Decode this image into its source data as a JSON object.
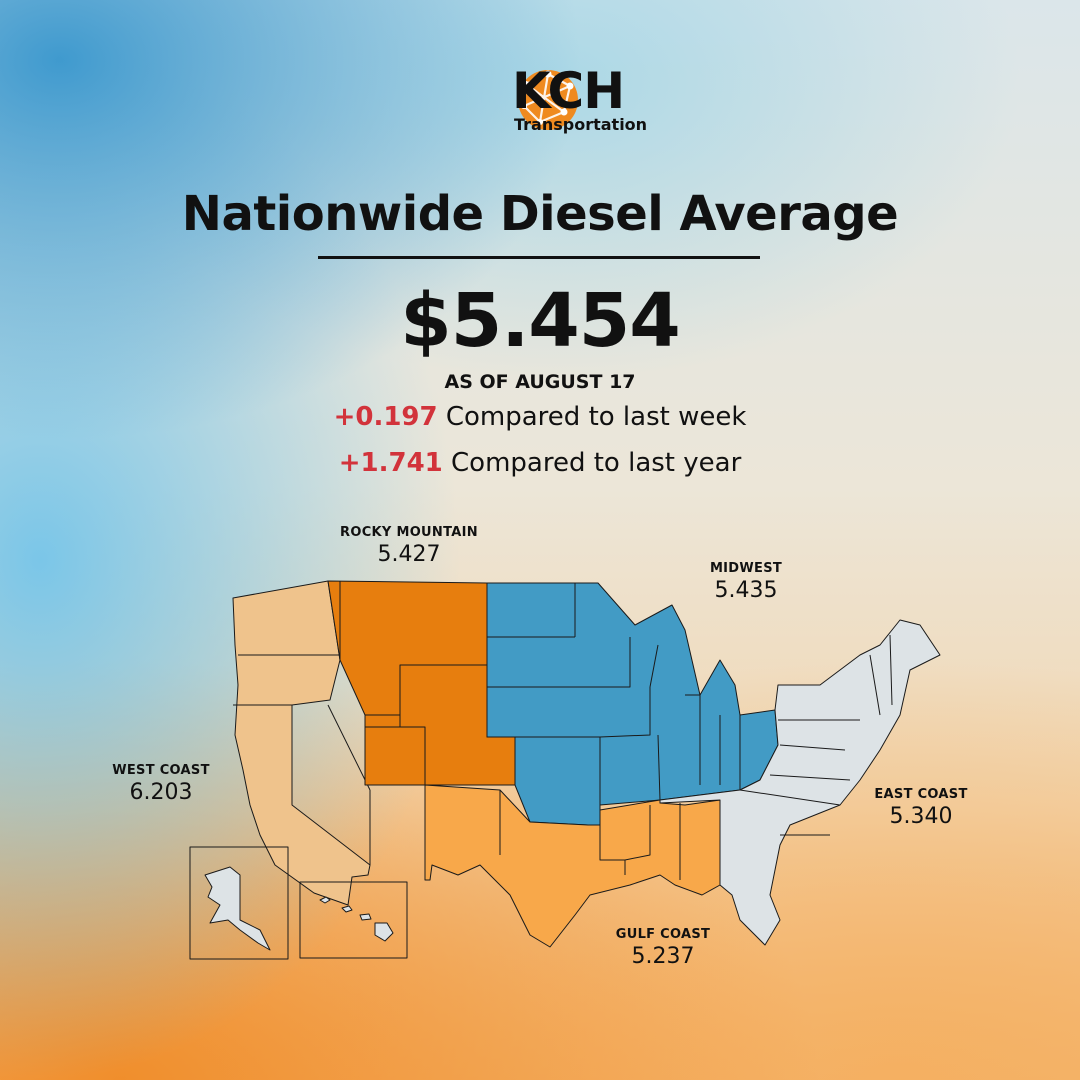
{
  "brand": {
    "name": "KCH",
    "tagline": "Transportation",
    "logo_icon": "globe-network-icon",
    "logo_color": "#ef8a1f"
  },
  "headline": {
    "title": "Nationwide Diesel Average",
    "price": "$5.454",
    "as_of": "AS OF AUGUST 17"
  },
  "changes": [
    {
      "delta": "+0.197",
      "text": "Compared to last week"
    },
    {
      "delta": "+1.741",
      "text": "Compared to last year"
    }
  ],
  "colors": {
    "delta": "#d2333b",
    "west_coast": "#efc38c",
    "rocky_mountain": "#e77e0e",
    "midwest": "#429bc5",
    "gulf_coast": "#f8a84a",
    "east_coast": "#dde3e6"
  },
  "regions": {
    "rocky_mountain": {
      "name": "ROCKY MOUNTAIN",
      "value": "5.427"
    },
    "midwest": {
      "name": "MIDWEST",
      "value": "5.435"
    },
    "west_coast": {
      "name": "WEST COAST",
      "value": "6.203"
    },
    "east_coast": {
      "name": "EAST COAST",
      "value": "5.340"
    },
    "gulf_coast": {
      "name": "GULF COAST",
      "value": "5.237"
    }
  }
}
